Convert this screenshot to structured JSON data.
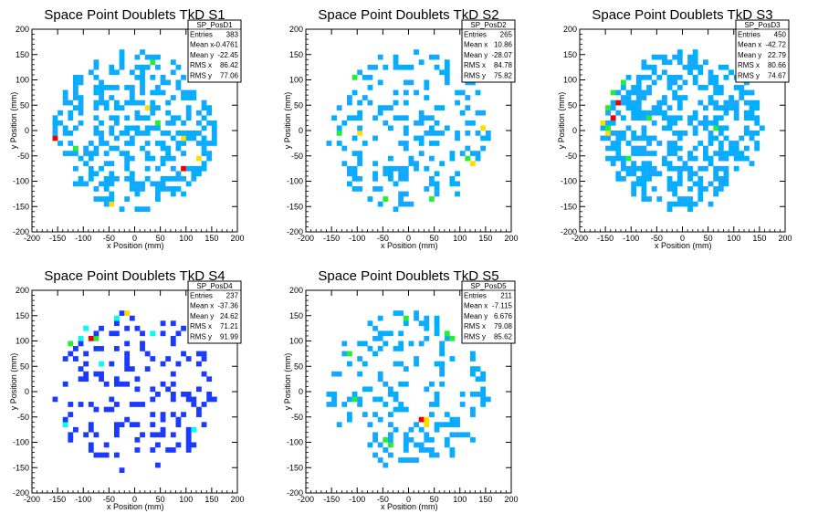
{
  "chart_data": [
    {
      "type": "heatmap",
      "title": "Space Point Doublets TkD S1",
      "xlabel": "x Position (mm)",
      "ylabel": "y Position (mm)",
      "xlim": [
        -200,
        200
      ],
      "ylim": [
        -200,
        200
      ],
      "xticks": [
        -200,
        -150,
        -100,
        -50,
        0,
        50,
        100,
        150,
        200
      ],
      "yticks": [
        -200,
        -150,
        -100,
        -50,
        0,
        50,
        100,
        150,
        200
      ],
      "palette": "rainbow",
      "stats": {
        "name": "SP_PosD1",
        "rows": [
          {
            "label": "Entries",
            "value": "383"
          },
          {
            "label": "Mean x",
            "value": "-0.4761"
          },
          {
            "label": "Mean y",
            "value": "-22.45"
          },
          {
            "label": "RMS x",
            "value": "86.42"
          },
          {
            "label": "RMS y",
            "value": "77.06"
          }
        ]
      },
      "hot_cells": [
        {
          "x": -160,
          "y": -20,
          "level": "red"
        },
        {
          "x": 90,
          "y": -80,
          "level": "red"
        },
        {
          "x": -110,
          "y": 130,
          "level": "green"
        },
        {
          "x": 30,
          "y": 130,
          "level": "green"
        },
        {
          "x": -120,
          "y": -40,
          "level": "green"
        },
        {
          "x": 40,
          "y": 10,
          "level": "green"
        },
        {
          "x": 20,
          "y": 40,
          "level": "yellow"
        },
        {
          "x": 90,
          "y": -20,
          "level": "yellow"
        },
        {
          "x": -50,
          "y": -150,
          "level": "yellow"
        },
        {
          "x": 120,
          "y": -60,
          "level": "yellow"
        }
      ]
    },
    {
      "type": "heatmap",
      "title": "Space Point Doublets TkD S2",
      "xlabel": "x Position (mm)",
      "ylabel": "y Position (mm)",
      "xlim": [
        -200,
        200
      ],
      "ylim": [
        -200,
        200
      ],
      "xticks": [
        -200,
        -150,
        -100,
        -50,
        0,
        50,
        100,
        150,
        200
      ],
      "yticks": [
        -200,
        -150,
        -100,
        -50,
        0,
        50,
        100,
        150,
        200
      ],
      "palette": "rainbow",
      "stats": {
        "name": "SP_PosD2",
        "rows": [
          {
            "label": "Entries",
            "value": "265"
          },
          {
            "label": "Mean x",
            "value": "10.86"
          },
          {
            "label": "Mean y",
            "value": "-28.07"
          },
          {
            "label": "RMS x",
            "value": "84.78"
          },
          {
            "label": "RMS y",
            "value": "75.82"
          }
        ]
      },
      "hot_cells": [
        {
          "x": 160,
          "y": -20,
          "level": "red"
        },
        {
          "x": -110,
          "y": 100,
          "level": "green"
        },
        {
          "x": -140,
          "y": -10,
          "level": "green"
        },
        {
          "x": 40,
          "y": -140,
          "level": "green"
        },
        {
          "x": 110,
          "y": -60,
          "level": "green"
        },
        {
          "x": -50,
          "y": -140,
          "level": "green"
        },
        {
          "x": 120,
          "y": -70,
          "level": "yellow"
        },
        {
          "x": -100,
          "y": -10,
          "level": "yellow"
        },
        {
          "x": 140,
          "y": 0,
          "level": "yellow"
        }
      ]
    },
    {
      "type": "heatmap",
      "title": "Space Point Doublets TkD S3",
      "xlabel": "x Position (mm)",
      "ylabel": "y Position (mm)",
      "xlim": [
        -200,
        200
      ],
      "ylim": [
        -200,
        200
      ],
      "xticks": [
        -200,
        -150,
        -100,
        -50,
        0,
        50,
        100,
        150,
        200
      ],
      "yticks": [
        -200,
        -150,
        -100,
        -50,
        0,
        50,
        100,
        150,
        200
      ],
      "palette": "rainbow",
      "stats": {
        "name": "SP_PosD3",
        "rows": [
          {
            "label": "Entries",
            "value": "450"
          },
          {
            "label": "Mean x",
            "value": "-42.72"
          },
          {
            "label": "Mean y",
            "value": "22.79"
          },
          {
            "label": "RMS x",
            "value": "80.66"
          },
          {
            "label": "RMS y",
            "value": "74.67"
          }
        ]
      },
      "hot_cells": [
        {
          "x": -140,
          "y": 20,
          "level": "red"
        },
        {
          "x": -130,
          "y": 50,
          "level": "red"
        },
        {
          "x": -150,
          "y": 40,
          "level": "green"
        },
        {
          "x": -140,
          "y": 70,
          "level": "green"
        },
        {
          "x": -150,
          "y": 0,
          "level": "green"
        },
        {
          "x": -150,
          "y": -10,
          "level": "yellow"
        },
        {
          "x": -160,
          "y": 10,
          "level": "yellow"
        },
        {
          "x": 140,
          "y": 120,
          "level": "yellow"
        },
        {
          "x": -130,
          "y": 100,
          "level": "green"
        },
        {
          "x": -100,
          "y": 130,
          "level": "green"
        },
        {
          "x": -70,
          "y": 20,
          "level": "green"
        },
        {
          "x": -110,
          "y": -60,
          "level": "green"
        },
        {
          "x": -120,
          "y": 90,
          "level": "green"
        },
        {
          "x": 60,
          "y": 0,
          "level": "green"
        }
      ]
    },
    {
      "type": "heatmap",
      "title": "Space Point Doublets TkD S4",
      "xlabel": "x Position (mm)",
      "ylabel": "y Position (mm)",
      "xlim": [
        -200,
        200
      ],
      "ylim": [
        -200,
        200
      ],
      "xticks": [
        -200,
        -150,
        -100,
        -50,
        0,
        50,
        100,
        150,
        200
      ],
      "yticks": [
        -200,
        -150,
        -100,
        -50,
        0,
        50,
        100,
        150,
        200
      ],
      "palette": "rainbow",
      "stats": {
        "name": "SP_PosD4",
        "rows": [
          {
            "label": "Entries",
            "value": "237"
          },
          {
            "label": "Mean x",
            "value": "-37.36"
          },
          {
            "label": "Mean y",
            "value": "24.62"
          },
          {
            "label": "RMS x",
            "value": "71.21"
          },
          {
            "label": "RMS y",
            "value": "91.99"
          }
        ]
      },
      "hot_cells": [
        {
          "x": -90,
          "y": 100,
          "level": "red"
        },
        {
          "x": -20,
          "y": 150,
          "level": "yellow"
        },
        {
          "x": -140,
          "y": 80,
          "level": "green"
        },
        {
          "x": -130,
          "y": 90,
          "level": "green"
        },
        {
          "x": -80,
          "y": 100,
          "level": "green"
        },
        {
          "x": -70,
          "y": 140,
          "level": "green"
        },
        {
          "x": -150,
          "y": 60,
          "level": "cyan"
        },
        {
          "x": -100,
          "y": 120,
          "level": "cyan"
        },
        {
          "x": -110,
          "y": 100,
          "level": "cyan"
        },
        {
          "x": -40,
          "y": 140,
          "level": "cyan"
        },
        {
          "x": 30,
          "y": 110,
          "level": "cyan"
        },
        {
          "x": -70,
          "y": 50,
          "level": "cyan"
        },
        {
          "x": -140,
          "y": -70,
          "level": "cyan"
        },
        {
          "x": 110,
          "y": -80,
          "level": "cyan"
        }
      ]
    },
    {
      "type": "heatmap",
      "title": "Space Point Doublets TkD S5",
      "xlabel": "x Position (mm)",
      "ylabel": "y Position (mm)",
      "xlim": [
        -200,
        200
      ],
      "ylim": [
        -200,
        200
      ],
      "xticks": [
        -200,
        -150,
        -100,
        -50,
        0,
        50,
        100,
        150,
        200
      ],
      "yticks": [
        -200,
        -150,
        -100,
        -50,
        0,
        50,
        100,
        150,
        200
      ],
      "palette": "rainbow",
      "stats": {
        "name": "SP_PosD5",
        "rows": [
          {
            "label": "Entries",
            "value": "211"
          },
          {
            "label": "Mean x",
            "value": "-7.115"
          },
          {
            "label": "Mean y",
            "value": "6.676"
          },
          {
            "label": "RMS x",
            "value": "79.08"
          },
          {
            "label": "RMS y",
            "value": "85.62"
          }
        ]
      },
      "hot_cells": [
        {
          "x": 20,
          "y": -60,
          "level": "red"
        },
        {
          "x": -40,
          "y": 150,
          "level": "green"
        },
        {
          "x": -10,
          "y": 140,
          "level": "green"
        },
        {
          "x": 70,
          "y": 110,
          "level": "green"
        },
        {
          "x": 80,
          "y": 100,
          "level": "green"
        },
        {
          "x": -120,
          "y": 70,
          "level": "green"
        },
        {
          "x": -110,
          "y": -20,
          "level": "green"
        },
        {
          "x": -50,
          "y": -100,
          "level": "green"
        },
        {
          "x": -40,
          "y": -110,
          "level": "green"
        },
        {
          "x": 30,
          "y": -60,
          "level": "yellow"
        },
        {
          "x": 30,
          "y": -70,
          "level": "yellow"
        }
      ]
    }
  ]
}
